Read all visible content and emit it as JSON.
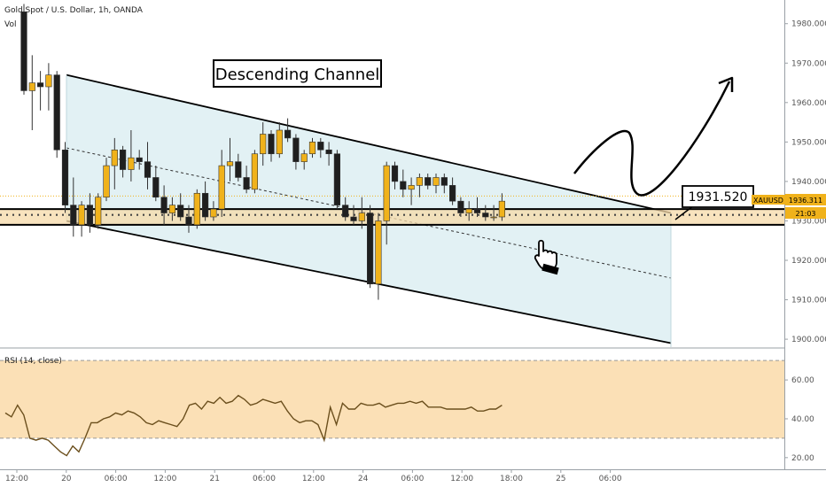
{
  "header": {
    "title": "Gold Spot / U.S. Dollar, 1h, OANDA",
    "volume_label": "Vol"
  },
  "annotations": {
    "pattern_label": "Descending Channel",
    "price_callout": "1931.520",
    "hand_icon": "pointing-hand-icon",
    "arrow_icon": "curved-up-arrow-icon"
  },
  "price_axis": {
    "ticks": [
      "1980.000",
      "1970.000",
      "1960.000",
      "1950.000",
      "1940.000",
      "1930.000",
      "1920.000",
      "1910.000",
      "1900.000"
    ],
    "symbol_tag": "XAUUSD",
    "last_price_tag": "1936.311",
    "countdown_tag": "21:03"
  },
  "rsi": {
    "label": "RSI (14, close)",
    "ticks": [
      "60.00",
      "40.00",
      "20.00"
    ],
    "band": [
      30,
      70
    ]
  },
  "time_axis": {
    "labels": [
      "12:00",
      "20",
      "06:00",
      "12:00",
      "21",
      "06:00",
      "12:00",
      "24",
      "06:00",
      "12:00",
      "18:00",
      "25",
      "06:00"
    ]
  },
  "colors": {
    "bull": "#f0b21b",
    "bear": "#1f1f1f",
    "channel_fill": "#e2f1f4",
    "zone_fill": "#f5d9a8",
    "rsi_fill": "#fbe0b6"
  },
  "chart_data": {
    "type": "candlestick",
    "title": "Gold Spot / U.S. Dollar, 1h, OANDA",
    "ylim": [
      1898,
      1986
    ],
    "candles": [
      [
        1983,
        1985,
        1962,
        1963
      ],
      [
        1963,
        1972,
        1953,
        1965
      ],
      [
        1965,
        1968,
        1958,
        1964
      ],
      [
        1964,
        1970,
        1958,
        1967
      ],
      [
        1967,
        1968,
        1946,
        1948
      ],
      [
        1948,
        1950,
        1932,
        1934
      ],
      [
        1934,
        1941,
        1926,
        1929
      ],
      [
        1929,
        1935,
        1926,
        1934
      ],
      [
        1934,
        1937,
        1927,
        1929
      ],
      [
        1929,
        1937,
        1928,
        1936
      ],
      [
        1936,
        1946,
        1935,
        1944
      ],
      [
        1944,
        1951,
        1938,
        1948
      ],
      [
        1948,
        1949,
        1941,
        1943
      ],
      [
        1943,
        1953,
        1940,
        1946
      ],
      [
        1946,
        1948,
        1943,
        1945
      ],
      [
        1945,
        1950,
        1938,
        1941
      ],
      [
        1941,
        1944,
        1935,
        1936
      ],
      [
        1936,
        1939,
        1929,
        1932
      ],
      [
        1932,
        1936,
        1930,
        1934
      ],
      [
        1934,
        1937,
        1930,
        1931
      ],
      [
        1931,
        1934,
        1927,
        1929
      ],
      [
        1929,
        1938,
        1928,
        1937
      ],
      [
        1937,
        1940,
        1930,
        1931
      ],
      [
        1931,
        1935,
        1930,
        1933
      ],
      [
        1933,
        1948,
        1931,
        1944
      ],
      [
        1944,
        1951,
        1940,
        1945
      ],
      [
        1945,
        1947,
        1940,
        1941
      ],
      [
        1941,
        1944,
        1937,
        1938
      ],
      [
        1938,
        1948,
        1937,
        1947
      ],
      [
        1947,
        1955,
        1944,
        1952
      ],
      [
        1952,
        1953,
        1945,
        1947
      ],
      [
        1947,
        1955,
        1946,
        1953
      ],
      [
        1953,
        1956,
        1950,
        1951
      ],
      [
        1951,
        1952,
        1943,
        1945
      ],
      [
        1945,
        1948,
        1943,
        1947
      ],
      [
        1947,
        1951,
        1946,
        1950
      ],
      [
        1950,
        1951,
        1946,
        1948
      ],
      [
        1948,
        1950,
        1944,
        1947
      ],
      [
        1947,
        1948,
        1933,
        1934
      ],
      [
        1934,
        1936,
        1930,
        1931
      ],
      [
        1931,
        1934,
        1929,
        1930
      ],
      [
        1930,
        1936,
        1928,
        1932
      ],
      [
        1932,
        1934,
        1913,
        1914
      ],
      [
        1914,
        1932,
        1910,
        1930
      ],
      [
        1930,
        1945,
        1924,
        1944
      ],
      [
        1944,
        1945,
        1938,
        1940
      ],
      [
        1940,
        1943,
        1936,
        1938
      ],
      [
        1938,
        1941,
        1934,
        1939
      ],
      [
        1939,
        1942,
        1936,
        1941
      ],
      [
        1941,
        1942,
        1938,
        1939
      ],
      [
        1939,
        1942,
        1937,
        1941
      ],
      [
        1941,
        1942,
        1937,
        1939
      ],
      [
        1939,
        1941,
        1934,
        1935
      ],
      [
        1935,
        1936,
        1931,
        1932
      ],
      [
        1932,
        1935,
        1930,
        1933
      ],
      [
        1933,
        1936,
        1931,
        1932
      ],
      [
        1932,
        1934,
        1930,
        1931
      ],
      [
        1931,
        1934,
        1930,
        1931
      ],
      [
        1931,
        1937,
        1930,
        1935
      ]
    ],
    "channel": {
      "upper": [
        1967,
        1932
      ],
      "lower": [
        1930,
        1899
      ],
      "mid": [
        1948.5,
        1915.5
      ]
    },
    "horizontal_levels": [
      1931.52,
      1936.311
    ],
    "support_zone": [
      1929,
      1933
    ],
    "rsi_values": [
      43,
      41,
      47,
      42,
      30,
      29,
      30,
      29,
      26,
      23,
      21,
      26,
      23,
      30,
      38,
      38,
      40,
      41,
      43,
      42,
      44,
      43,
      41,
      38,
      37,
      39,
      38,
      37,
      36,
      40,
      47,
      48,
      45,
      49,
      48,
      51,
      48,
      49,
      52,
      50,
      47,
      48,
      50,
      49,
      48,
      49,
      44,
      40,
      38,
      39,
      39,
      37,
      29,
      46,
      37,
      48,
      45,
      45,
      48,
      47,
      47,
      48,
      46,
      47,
      48,
      48,
      49,
      48,
      49,
      46,
      46,
      46,
      45,
      45,
      45,
      45,
      46,
      44,
      44,
      45,
      45,
      47
    ]
  }
}
